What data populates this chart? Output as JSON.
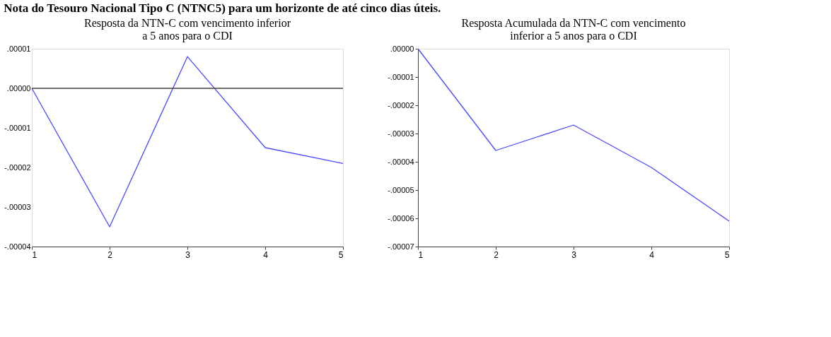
{
  "chart_data": [
    {
      "type": "line",
      "title": [
        "Resposta da NTN-C com vencimento inferior",
        "a 5 anos para o CDI"
      ],
      "annotations": [
        "Nota do Tesouro Nacional Tipo C (NTNC5) para um horizonte de até cinco dias úteis."
      ],
      "x": [
        1,
        2,
        3,
        4,
        5
      ],
      "xlim": [
        1,
        5
      ],
      "xticks": [
        1,
        2,
        3,
        4,
        5
      ],
      "ylim": [
        -4e-05,
        1e-05
      ],
      "yticks": [
        {
          "value": 1e-05,
          "label": ".00001"
        },
        {
          "value": 0,
          "label": ".00000"
        },
        {
          "value": -1e-05,
          "label": "-.00001"
        },
        {
          "value": -2e-05,
          "label": "-.00002"
        },
        {
          "value": -3e-05,
          "label": "-.00003"
        },
        {
          "value": -4e-05,
          "label": "-.00004"
        }
      ],
      "series": [
        {
          "color": "#4a4aff",
          "values": [
            0,
            -3.5e-05,
            8e-06,
            -1.5e-05,
            -1.9e-05
          ]
        }
      ],
      "ref_lines": [
        {
          "axis": "y",
          "value": 0,
          "color": "#404040"
        }
      ],
      "grid": false,
      "marker": "none",
      "line_style": "solid"
    },
    {
      "type": "line",
      "title": [
        "Resposta Acumulada da NTN-C com vencimento",
        "inferior a 5 anos para o CDI"
      ],
      "x": [
        1,
        2,
        3,
        4,
        5
      ],
      "xlim": [
        1,
        5
      ],
      "xticks": [
        1,
        2,
        3,
        4,
        5
      ],
      "ylim": [
        -7e-05,
        0
      ],
      "yticks": [
        {
          "value": 0,
          "label": ".00000"
        },
        {
          "value": -1e-05,
          "label": "-.00001"
        },
        {
          "value": -2e-05,
          "label": "-.00002"
        },
        {
          "value": -3e-05,
          "label": "-.00003"
        },
        {
          "value": -4e-05,
          "label": "-.00004"
        },
        {
          "value": -5e-05,
          "label": "-.00005"
        },
        {
          "value": -6e-05,
          "label": "-.00006"
        },
        {
          "value": -7e-05,
          "label": "-.00007"
        }
      ],
      "series": [
        {
          "color": "#4a4aff",
          "values": [
            0,
            -3.6e-05,
            -2.7e-05,
            -4.2e-05,
            -6.1e-05
          ]
        }
      ],
      "grid": false,
      "marker": "none",
      "line_style": "solid"
    }
  ]
}
